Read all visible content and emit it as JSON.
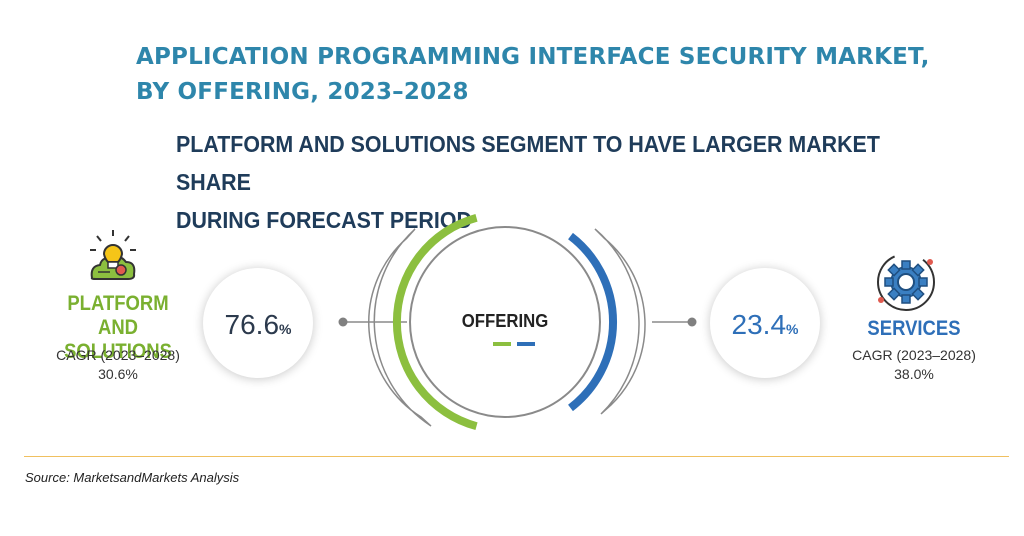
{
  "title_line1": "APPLICATION PROGRAMMING INTERFACE SECURITY MARKET,",
  "title_line2": "BY OFFERING, 2023–2028",
  "subtitle_line1": "PLATFORM AND SOLUTIONS SEGMENT TO HAVE LARGER MARKET SHARE",
  "subtitle_line2": "DURING FORECAST PERIOD",
  "center_label": "OFFERING",
  "source": "Source: MarketsandMarkets Analysis",
  "colors": {
    "platform": "#8cbf3f",
    "services": "#2e6fb8",
    "title": "#2e86ab",
    "subtitle": "#1f3c5a"
  },
  "chart_data": {
    "type": "pie",
    "title": "APPLICATION PROGRAMMING INTERFACE SECURITY MARKET, BY OFFERING, 2023–2028",
    "slices": [
      {
        "name": "PLATFORM AND SOLUTIONS",
        "name_line1": "PLATFORM",
        "name_line2": "AND SOLUTIONS",
        "share": 76.6,
        "share_text": "76.6",
        "unit": "%",
        "cagr_label": "CAGR (2023–2028)",
        "cagr": "30.6%",
        "color": "#8cbf3f",
        "icon": "lightbulb-cloud-icon"
      },
      {
        "name": "SERVICES",
        "name_line1": "SERVICES",
        "name_line2": "",
        "share": 23.4,
        "share_text": "23.4",
        "unit": "%",
        "cagr_label": "CAGR (2023–2028)",
        "cagr": "38.0%",
        "color": "#2e6fb8",
        "icon": "gear-icon"
      }
    ]
  }
}
